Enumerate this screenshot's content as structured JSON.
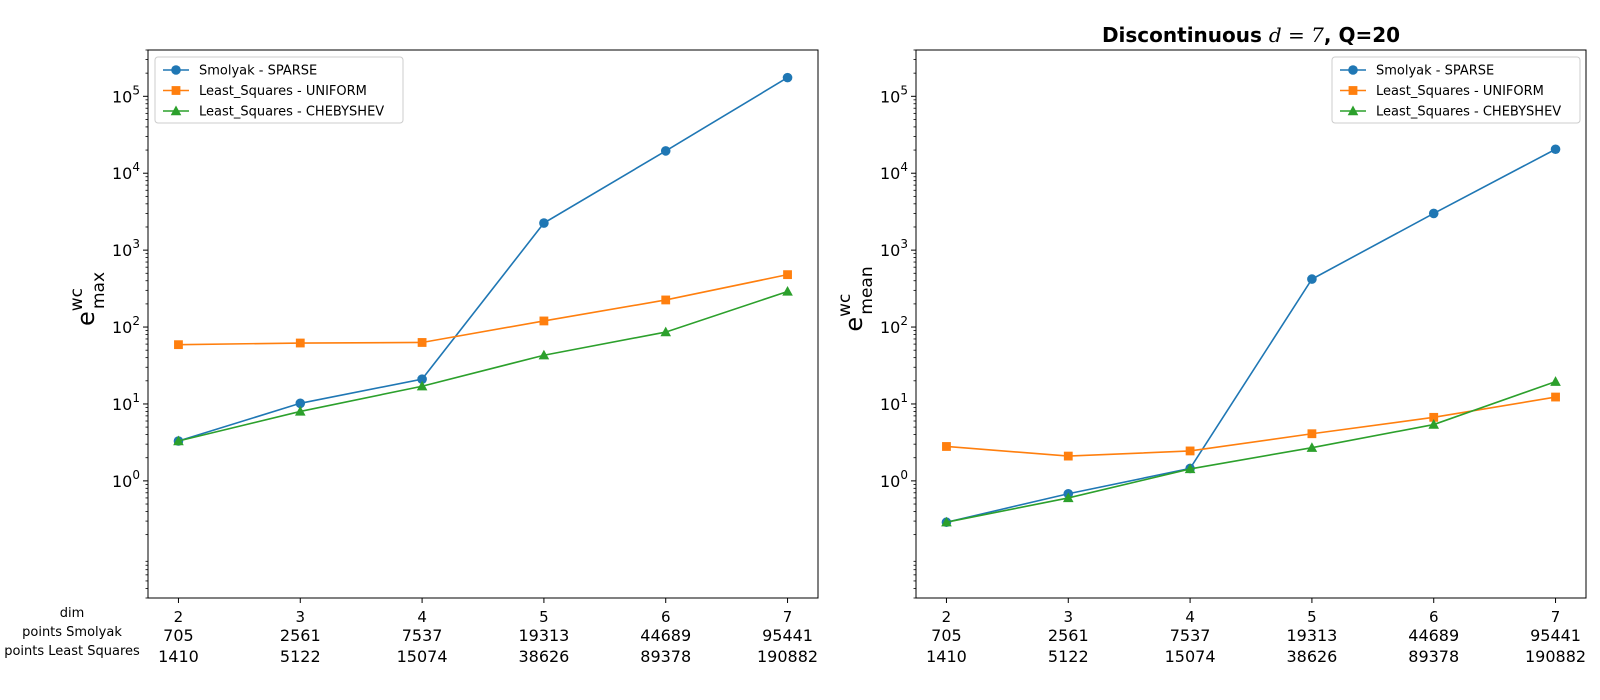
{
  "figure_title": "Discontinuous d = 7, Q=20",
  "figure_title_parts": {
    "prefix": "Discontinuous ",
    "var": "d",
    "eq": " = 7",
    "suffix": ", Q=20"
  },
  "table_row_labels": [
    "dim",
    "points Smolyak",
    "points Least Squares"
  ],
  "chart_data": [
    {
      "type": "line",
      "yscale": "log",
      "ylim": [
        0.03,
        400000
      ],
      "ylabel": {
        "base": "e",
        "sup": "wc",
        "sub": "max"
      },
      "x": [
        2,
        3,
        4,
        5,
        6,
        7
      ],
      "xtick_rows": [
        [
          "2",
          "3",
          "4",
          "5",
          "6",
          "7"
        ],
        [
          "705",
          "2561",
          "7537",
          "19313",
          "44689",
          "95441"
        ],
        [
          "1410",
          "5122",
          "15074",
          "38626",
          "89378",
          "190882"
        ]
      ],
      "yticks": [
        {
          "v": 1,
          "b": "10",
          "e": "0"
        },
        {
          "v": 10,
          "b": "10",
          "e": "1"
        },
        {
          "v": 100,
          "b": "10",
          "e": "2"
        },
        {
          "v": 1000,
          "b": "10",
          "e": "3"
        },
        {
          "v": 10000,
          "b": "10",
          "e": "4"
        },
        {
          "v": 100000,
          "b": "10",
          "e": "5"
        }
      ],
      "legend_position": "upper-left",
      "series": [
        {
          "name": "Smolyak - SPARSE",
          "color": "#1f77b4",
          "marker": "circle",
          "values": [
            3.3,
            10.2,
            21,
            2250,
            19500,
            175000
          ]
        },
        {
          "name": "Least_Squares - UNIFORM",
          "color": "#ff7f0e",
          "marker": "square",
          "values": [
            59,
            62,
            63,
            120,
            225,
            480
          ]
        },
        {
          "name": "Least_Squares - CHEBYSHEV",
          "color": "#2ca02c",
          "marker": "triangle",
          "values": [
            3.3,
            8,
            17,
            43,
            86,
            290
          ]
        }
      ]
    },
    {
      "type": "line",
      "yscale": "log",
      "ylim": [
        0.03,
        400000
      ],
      "ylabel": {
        "base": "e",
        "sup": "wc",
        "sub": "mean"
      },
      "x": [
        2,
        3,
        4,
        5,
        6,
        7
      ],
      "xtick_rows": [
        [
          "2",
          "3",
          "4",
          "5",
          "6",
          "7"
        ],
        [
          "705",
          "2561",
          "7537",
          "19313",
          "44689",
          "95441"
        ],
        [
          "1410",
          "5122",
          "15074",
          "38626",
          "89378",
          "190882"
        ]
      ],
      "yticks": [
        {
          "v": 1,
          "b": "10",
          "e": "0"
        },
        {
          "v": 10,
          "b": "10",
          "e": "1"
        },
        {
          "v": 100,
          "b": "10",
          "e": "2"
        },
        {
          "v": 1000,
          "b": "10",
          "e": "3"
        },
        {
          "v": 10000,
          "b": "10",
          "e": "4"
        },
        {
          "v": 100000,
          "b": "10",
          "e": "5"
        }
      ],
      "legend_position": "upper-right",
      "series": [
        {
          "name": "Smolyak - SPARSE",
          "color": "#1f77b4",
          "marker": "circle",
          "values": [
            0.29,
            0.68,
            1.45,
            420,
            3000,
            20500
          ]
        },
        {
          "name": "Least_Squares - UNIFORM",
          "color": "#ff7f0e",
          "marker": "square",
          "values": [
            2.8,
            2.1,
            2.45,
            4.1,
            6.7,
            12.3
          ]
        },
        {
          "name": "Least_Squares - CHEBYSHEV",
          "color": "#2ca02c",
          "marker": "triangle",
          "values": [
            0.29,
            0.6,
            1.43,
            2.7,
            5.4,
            19.5
          ]
        }
      ]
    }
  ]
}
